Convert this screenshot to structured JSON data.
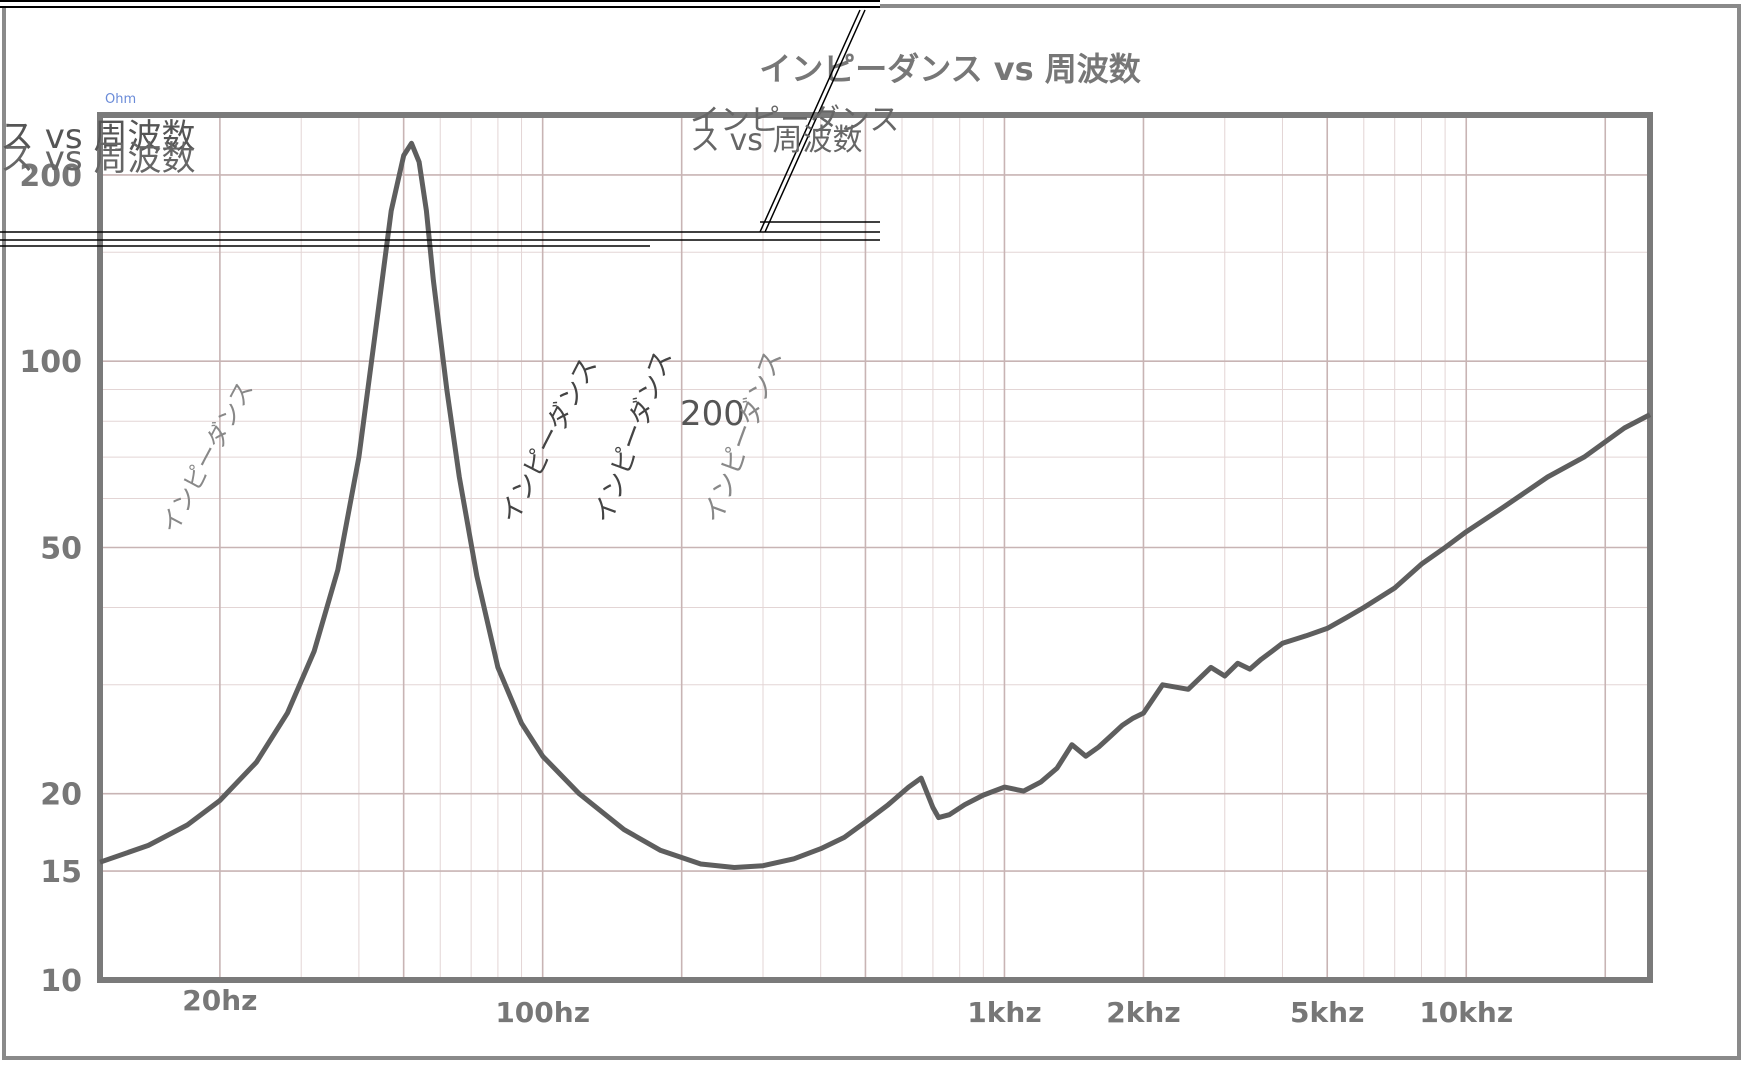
{
  "chart_data": {
    "type": "line",
    "title": "インピーダンス vs 周波数",
    "unit_label": "Ohm",
    "x_scale": "log",
    "y_scale": "log",
    "xlim": [
      11,
      25000
    ],
    "ylim": [
      10,
      250
    ],
    "x_ticks": [
      {
        "value": 20,
        "label": "20hz"
      },
      {
        "value": 100,
        "label": "100hz"
      },
      {
        "value": 1000,
        "label": "1khz"
      },
      {
        "value": 2000,
        "label": "2khz"
      },
      {
        "value": 5000,
        "label": "5khz"
      },
      {
        "value": 10000,
        "label": "10khz"
      }
    ],
    "y_ticks": [
      {
        "value": 200,
        "label": "200"
      },
      {
        "value": 100,
        "label": "100"
      },
      {
        "value": 50,
        "label": "50"
      },
      {
        "value": 20,
        "label": "20"
      },
      {
        "value": 15,
        "label": "15"
      },
      {
        "value": 10,
        "label": "10"
      }
    ],
    "grid": true,
    "series": [
      {
        "color": "#5e5e5e",
        "x": [
          11,
          14,
          17,
          20,
          24,
          28,
          32,
          36,
          40,
          44,
          47,
          50,
          52,
          54,
          56,
          58,
          62,
          66,
          72,
          80,
          90,
          100,
          120,
          150,
          180,
          220,
          260,
          300,
          350,
          400,
          450,
          500,
          560,
          620,
          660,
          700,
          720,
          760,
          820,
          900,
          1000,
          1100,
          1200,
          1300,
          1400,
          1500,
          1600,
          1700,
          1800,
          1900,
          2000,
          2200,
          2500,
          2800,
          3000,
          3200,
          3400,
          3600,
          3800,
          4000,
          4500,
          5000,
          5500,
          6000,
          7000,
          8000,
          9000,
          10000,
          12000,
          15000,
          18000,
          22000,
          25000
        ],
        "values": [
          15.5,
          16.5,
          17.8,
          19.5,
          22.5,
          27,
          34,
          46,
          70,
          120,
          175,
          215,
          225,
          210,
          175,
          135,
          90,
          65,
          45,
          32,
          26,
          23,
          20,
          17.5,
          16.2,
          15.4,
          15.2,
          15.3,
          15.7,
          16.3,
          17.0,
          18.0,
          19.2,
          20.5,
          21.2,
          19.0,
          18.3,
          18.5,
          19.2,
          19.9,
          20.5,
          20.2,
          20.9,
          22.0,
          24.0,
          23.0,
          23.8,
          24.8,
          25.8,
          26.5,
          27.0,
          30.0,
          29.5,
          32.0,
          31.0,
          32.5,
          31.8,
          33.0,
          34.0,
          35.0,
          36.0,
          37.0,
          38.5,
          40.0,
          43.0,
          47.0,
          50.0,
          53.0,
          58.0,
          65.0,
          70.0,
          78.0,
          82.0
        ]
      }
    ]
  },
  "overlay": {
    "title_fragment_1": "ス vs 周波数",
    "title_fragment_2": "ス vs 周波数",
    "tick_fragment": "200",
    "vertical_fragment_1": "ス vs 周波数",
    "vertical_fragment_2": "インピーダンス",
    "diagonal_fragment_1": "インピーダンス",
    "diagonal_fragment_2": "インピーダンス",
    "diagonal_fragment_3": "インピーダンス",
    "diagonal_fragment_4": "インピーダンス"
  }
}
